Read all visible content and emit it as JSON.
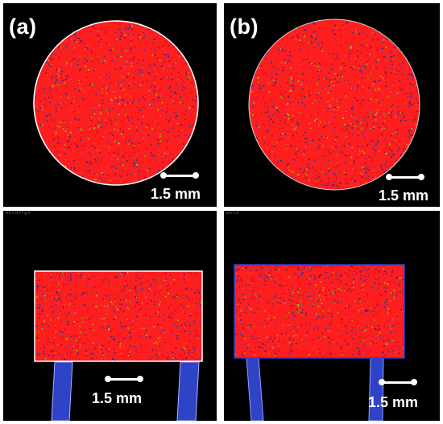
{
  "figure": {
    "panels": [
      {
        "id": "a",
        "label": "(a)",
        "view": "top cross-section",
        "scale_text": "1.5 mm",
        "caption_text": ""
      },
      {
        "id": "b",
        "label": "(b)",
        "view": "top cross-section",
        "scale_text": "1.5 mm",
        "caption_text": ""
      },
      {
        "id": "c",
        "label": "",
        "view": "side cross-section",
        "scale_text": "1.5 mm",
        "caption_text": "a b c d e f g h"
      },
      {
        "id": "d",
        "label": "",
        "view": "side cross-section",
        "scale_text": "1.5 mm",
        "caption_text": "a b c d"
      }
    ]
  },
  "colors": {
    "background": "#000000",
    "sample_fill": "#ff1e1e",
    "porosity_blue": "#1f2d9b",
    "porosity_green": "#8fd11f",
    "outline": "#ffffff",
    "support_blue": "#3045c8",
    "text": "#ffffff"
  }
}
